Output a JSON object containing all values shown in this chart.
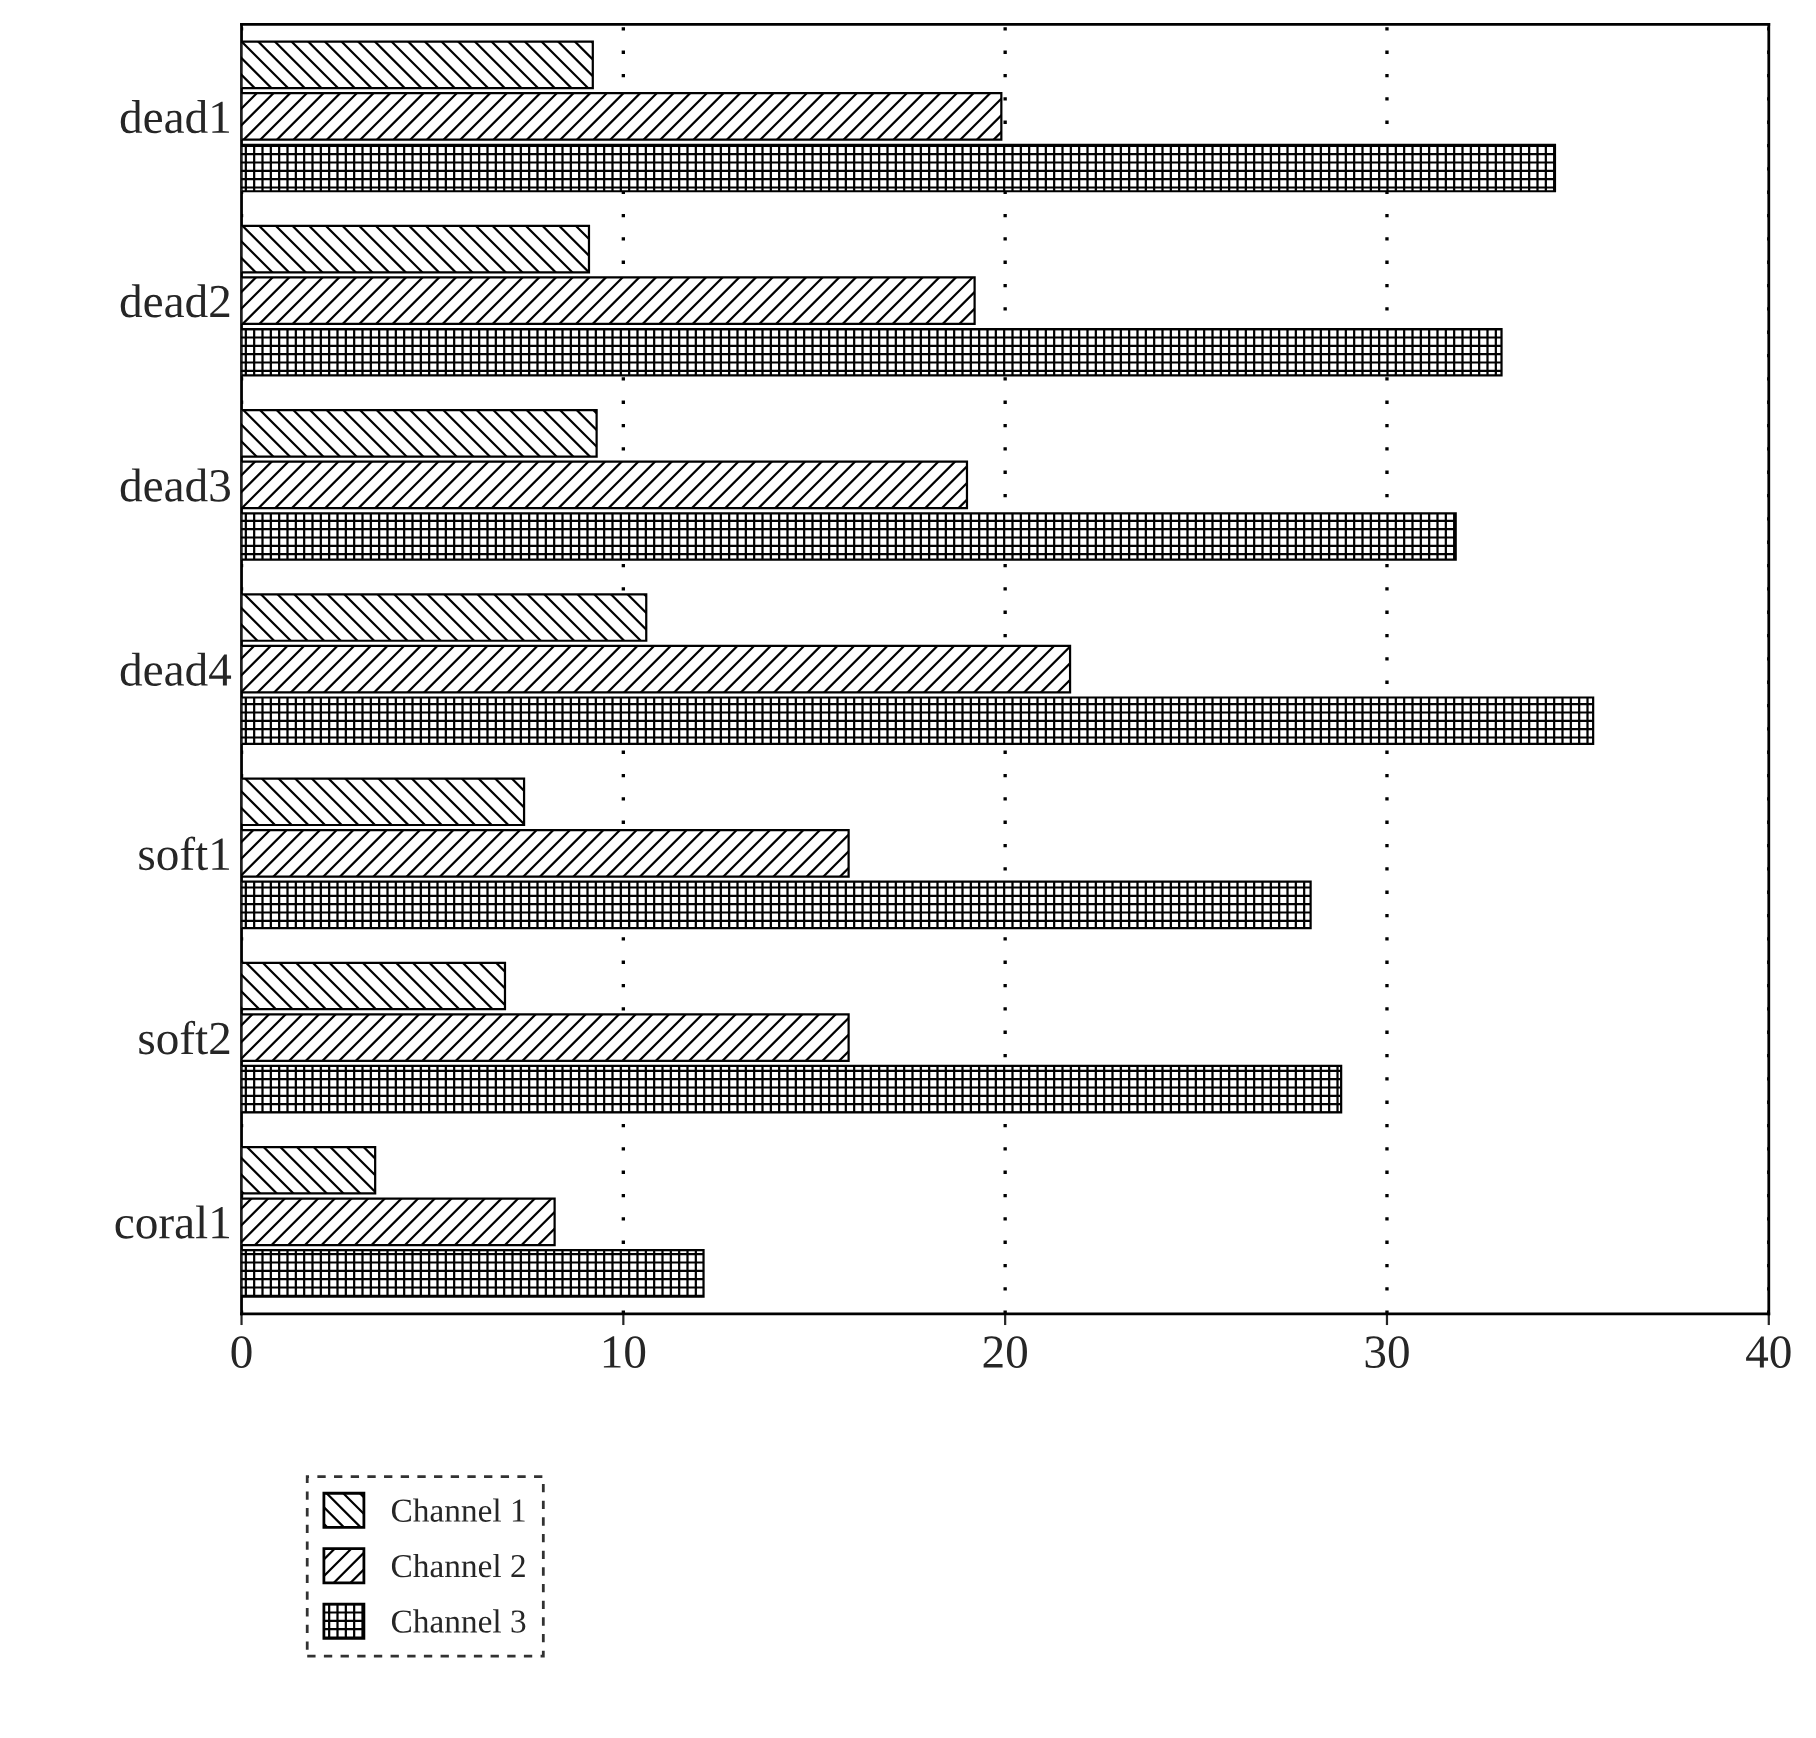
{
  "chart_data": {
    "type": "bar",
    "orientation": "horizontal",
    "categories": [
      "dead1",
      "dead2",
      "dead3",
      "dead4",
      "soft1",
      "soft2",
      "coral1"
    ],
    "series": [
      {
        "name": "Channel 1",
        "color": "#000000",
        "values": [
          9.2,
          9.1,
          9.3,
          10.6,
          7.4,
          6.9,
          3.5
        ]
      },
      {
        "name": "Channel 2",
        "color": "#000000",
        "values": [
          19.9,
          19.2,
          19.0,
          21.7,
          15.9,
          15.9,
          8.2
        ]
      },
      {
        "name": "Channel 3",
        "color": "#000000",
        "values": [
          34.4,
          33.0,
          31.8,
          35.4,
          28.0,
          28.8,
          12.1
        ]
      }
    ],
    "xlim": [
      0,
      40
    ],
    "xticks": [
      0,
      10,
      20,
      30,
      40
    ],
    "grid": "x",
    "legend": "bottom left"
  }
}
